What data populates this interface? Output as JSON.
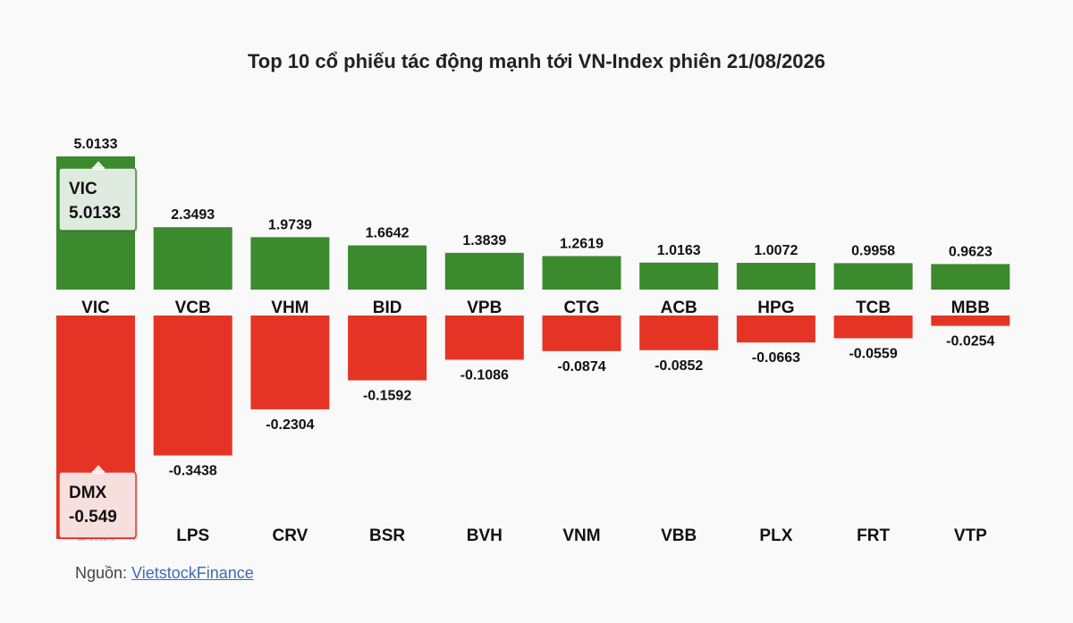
{
  "chart_data": {
    "type": "bar",
    "title": "Top 10 cổ phiếu tác động mạnh tới VN-Index phiên 21/08/2026",
    "xlabel": "",
    "ylabel": "",
    "gainers": {
      "categories": [
        "VIC",
        "VCB",
        "VHM",
        "BID",
        "VPB",
        "CTG",
        "ACB",
        "HPG",
        "TCB",
        "MBB"
      ],
      "values": [
        5.0133,
        2.3493,
        1.9739,
        1.6642,
        1.3839,
        1.2619,
        1.0163,
        1.0072,
        0.9958,
        0.9623
      ],
      "labels": [
        "5.0133",
        "2.3493",
        "1.9739",
        "1.6642",
        "1.3839",
        "1.2619",
        "1.0163",
        "1.0072",
        "0.9958",
        "0.9623"
      ],
      "color": "#3b8a2e"
    },
    "losers": {
      "categories": [
        "DMX",
        "LPS",
        "CRV",
        "BSR",
        "BVH",
        "VNM",
        "VBB",
        "PLX",
        "FRT",
        "VTP"
      ],
      "values": [
        -0.549,
        -0.3438,
        -0.2304,
        -0.1592,
        -0.1086,
        -0.0874,
        -0.0852,
        -0.0663,
        -0.0559,
        -0.0254
      ],
      "labels": [
        "-0.549",
        "-0.3438",
        "-0.2304",
        "-0.1592",
        "-0.1086",
        "-0.0874",
        "-0.0852",
        "-0.0663",
        "-0.0559",
        "-0.0254"
      ],
      "color": "#e53425"
    },
    "tooltips": [
      {
        "name": "VIC",
        "value": "5.0133",
        "color": "#3b8a2e"
      },
      {
        "name": "DMX",
        "value": "-0.549",
        "color": "#e53425"
      }
    ],
    "grid": false,
    "legend": "none"
  },
  "source": {
    "prefix": "Nguồn: ",
    "link": "VietstockFinance"
  }
}
